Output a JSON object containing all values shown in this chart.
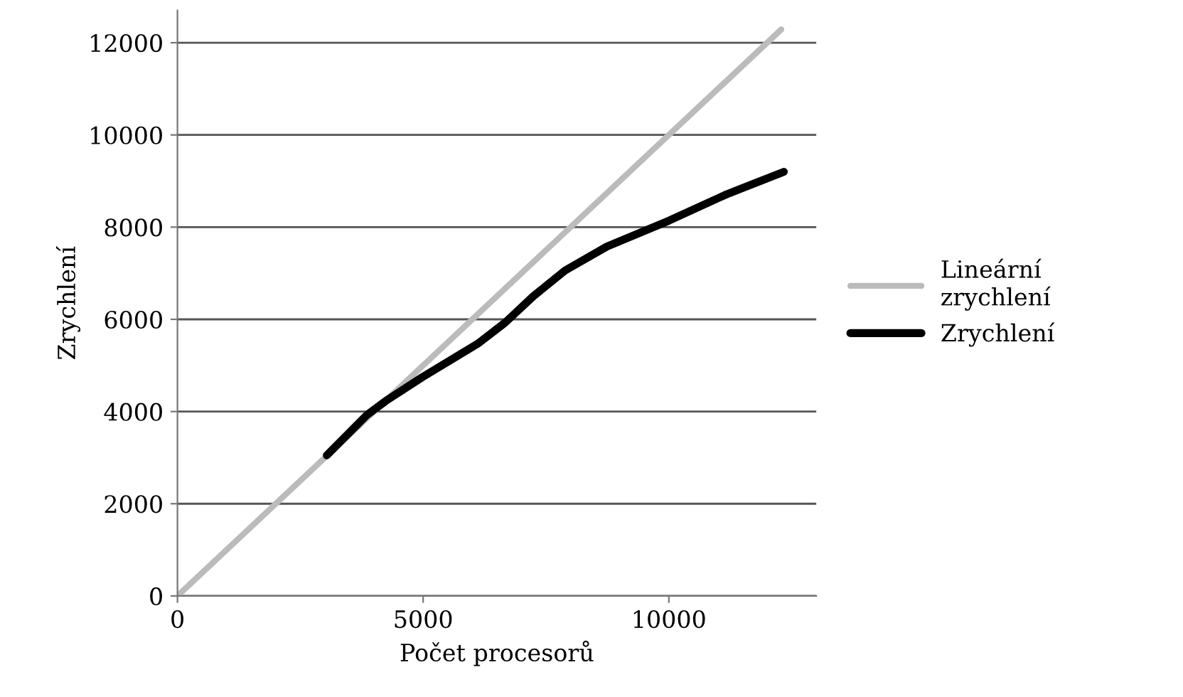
{
  "chart_data": {
    "type": "line",
    "xlabel": "Počet procesorů",
    "ylabel": "Zrychlení",
    "xlim": [
      0,
      13000
    ],
    "ylim": [
      0,
      12700
    ],
    "xticks": [
      0,
      5000,
      10000
    ],
    "yticks": [
      0,
      2000,
      4000,
      6000,
      8000,
      10000,
      12000
    ],
    "grid": "y",
    "legend": "right",
    "marker": "none",
    "line_style": "solid",
    "series": [
      {
        "name": "Lineární\nzrychlení",
        "color": "#bbbbbb",
        "x": [
          0,
          12288
        ],
        "values": [
          0,
          12288
        ]
      },
      {
        "name": "Zrychlení",
        "color": "#000000",
        "x": [
          3040,
          3860,
          4240,
          4990,
          6110,
          6670,
          7240,
          7890,
          8740,
          10000,
          11170,
          12340
        ],
        "values": [
          3050,
          3930,
          4230,
          4750,
          5470,
          5930,
          6500,
          7060,
          7580,
          8140,
          8710,
          9200
        ]
      }
    ]
  }
}
